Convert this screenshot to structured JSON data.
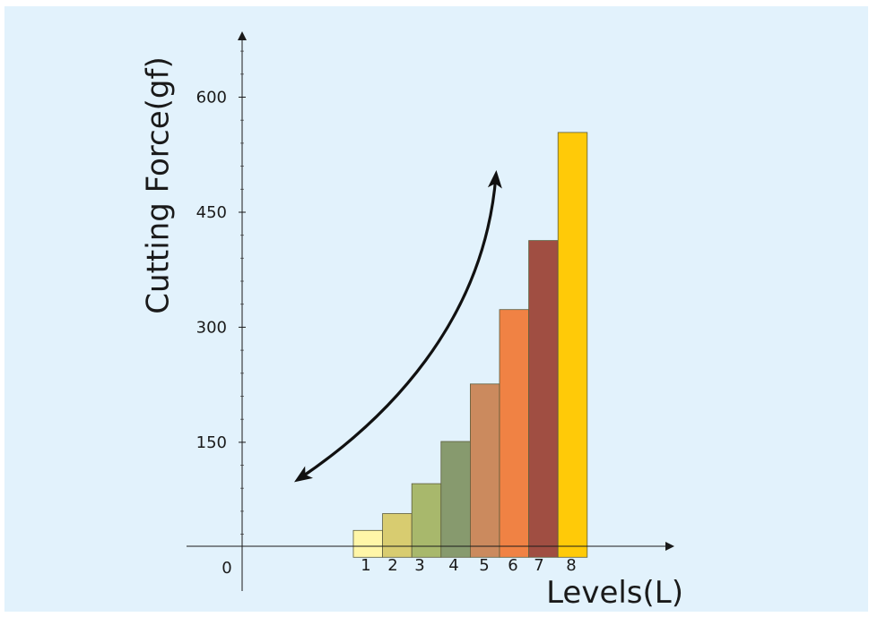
{
  "chart_data": {
    "type": "bar",
    "title": "",
    "ylabel": "Cutting Force(gf)",
    "xlabel": "Levels(L)",
    "categories": [
      "1",
      "2",
      "3",
      "4",
      "5",
      "6",
      "7",
      "8"
    ],
    "values": [
      35,
      57,
      96,
      151,
      226,
      323,
      413,
      554
    ],
    "colors": [
      "#FFF6A8",
      "#D8CC70",
      "#A8B86C",
      "#879A6E",
      "#CB8A5E",
      "#F08244",
      "#A04E42",
      "#FFCA08"
    ],
    "ylim": [
      -44,
      680
    ],
    "yticks": [
      600,
      450,
      300,
      150
    ],
    "origin_label": "0",
    "trend_arrow": "double-headed curved arrow",
    "background_color": "#E2F2FC"
  }
}
